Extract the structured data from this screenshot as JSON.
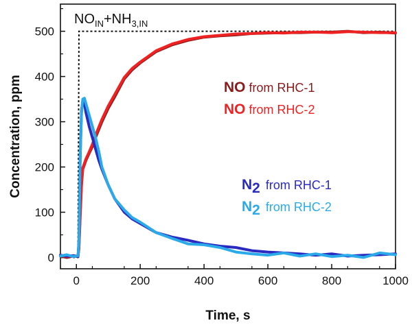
{
  "chart_data": {
    "type": "line",
    "xlabel": "Time, s",
    "ylabel": "Concentration, ppm",
    "xlim": [
      -50,
      1000
    ],
    "ylim": [
      -25,
      560
    ],
    "x_ticks": [
      0,
      200,
      400,
      600,
      800,
      1000
    ],
    "y_ticks": [
      0,
      100,
      200,
      300,
      400,
      500
    ],
    "grid": false,
    "annotation": {
      "parts": [
        {
          "text": "NO",
          "sub": false
        },
        {
          "text": "IN",
          "sub": true
        },
        {
          "text": "+NH",
          "sub": false
        },
        {
          "text": "3,IN",
          "sub": true
        }
      ]
    },
    "legend": {
      "placement": "right",
      "entries": [
        {
          "species": "NO",
          "sub": "",
          "from": "from RHC-1",
          "color": "#8b1a1a"
        },
        {
          "species": "NO",
          "sub": "",
          "from": "from RHC-2",
          "color": "#ee2222"
        },
        {
          "species": "N",
          "sub": "2",
          "from": "from RHC-1",
          "color": "#2a2ac0"
        },
        {
          "species": "N",
          "sub": "2",
          "from": "from RHC-2",
          "color": "#2aaae8"
        }
      ]
    },
    "inlet": {
      "style": "dotted",
      "color": "#111111",
      "x": [
        -50,
        5,
        8,
        1000
      ],
      "y": [
        0,
        0,
        500,
        500
      ]
    },
    "series": [
      {
        "key": "no1",
        "color": "#8b1a1a",
        "x": [
          -50,
          -30,
          -10,
          5,
          8,
          12,
          16,
          20,
          25,
          30,
          40,
          50,
          60,
          80,
          100,
          120,
          150,
          175,
          200,
          250,
          300,
          350,
          400,
          450,
          500,
          550,
          600,
          650,
          700,
          750,
          800,
          850,
          900,
          950,
          1000
        ],
        "y": [
          3,
          0,
          3,
          2,
          20,
          90,
          160,
          195,
          205,
          215,
          230,
          245,
          265,
          300,
          330,
          355,
          395,
          415,
          430,
          455,
          470,
          480,
          487,
          490,
          492,
          495,
          496,
          497,
          497,
          498,
          498,
          500,
          497,
          498,
          496
        ]
      },
      {
        "key": "no2",
        "color": "#ee2222",
        "x": [
          -50,
          -30,
          -10,
          5,
          8,
          12,
          16,
          20,
          25,
          30,
          40,
          50,
          60,
          80,
          100,
          120,
          150,
          175,
          200,
          250,
          300,
          350,
          400,
          450,
          500,
          550,
          600,
          650,
          700,
          750,
          800,
          850,
          900,
          950,
          1000
        ],
        "y": [
          5,
          2,
          4,
          3,
          25,
          100,
          165,
          198,
          208,
          218,
          233,
          250,
          270,
          305,
          335,
          360,
          398,
          418,
          432,
          457,
          472,
          482,
          488,
          491,
          494,
          495,
          497,
          496,
          498,
          498,
          497,
          499,
          498,
          497,
          497
        ]
      },
      {
        "key": "n1",
        "color": "#2a2ac0",
        "x": [
          -50,
          -30,
          -10,
          5,
          8,
          12,
          16,
          20,
          25,
          30,
          40,
          50,
          60,
          70,
          80,
          100,
          120,
          150,
          175,
          200,
          250,
          300,
          350,
          400,
          450,
          500,
          550,
          600,
          650,
          700,
          750,
          800,
          850,
          900,
          950,
          1000
        ],
        "y": [
          5,
          3,
          4,
          2,
          40,
          220,
          325,
          345,
          340,
          320,
          290,
          265,
          240,
          215,
          195,
          160,
          130,
          100,
          85,
          75,
          55,
          45,
          38,
          30,
          25,
          22,
          15,
          12,
          10,
          8,
          5,
          8,
          3,
          5,
          6,
          8
        ]
      },
      {
        "key": "n2",
        "color": "#2aaae8",
        "x": [
          -50,
          -30,
          -10,
          5,
          8,
          12,
          16,
          20,
          25,
          30,
          40,
          50,
          60,
          70,
          80,
          100,
          120,
          150,
          175,
          200,
          250,
          300,
          350,
          400,
          450,
          500,
          550,
          600,
          650,
          700,
          750,
          800,
          850,
          900,
          950,
          1000
        ],
        "y": [
          3,
          6,
          2,
          4,
          35,
          230,
          320,
          350,
          352,
          340,
          315,
          290,
          265,
          235,
          200,
          160,
          130,
          105,
          88,
          78,
          55,
          42,
          30,
          28,
          22,
          12,
          8,
          5,
          10,
          3,
          8,
          2,
          5,
          0,
          10,
          6
        ]
      }
    ]
  }
}
